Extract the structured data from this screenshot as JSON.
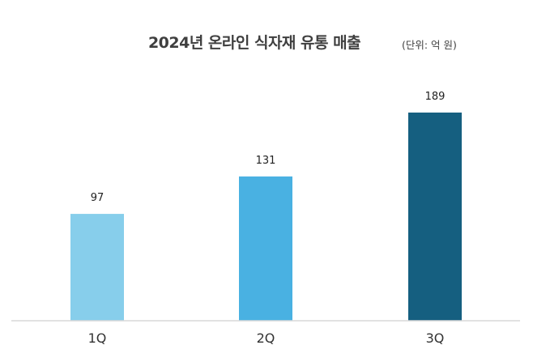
{
  "chart_data": {
    "type": "bar",
    "title": "2024년 온라인 식자재 유통 매출",
    "unit_note": "(단위: 억 원)",
    "categories": [
      "1Q",
      "2Q",
      "3Q"
    ],
    "values": [
      97,
      131,
      189
    ],
    "data_labels": [
      "97",
      "131",
      "189"
    ],
    "bar_colors": [
      "#87ceeb",
      "#49b1e2",
      "#155f80"
    ],
    "xlabel": "",
    "ylabel": "",
    "ylim": [
      0,
      200
    ],
    "grid": false,
    "legend": "none"
  }
}
